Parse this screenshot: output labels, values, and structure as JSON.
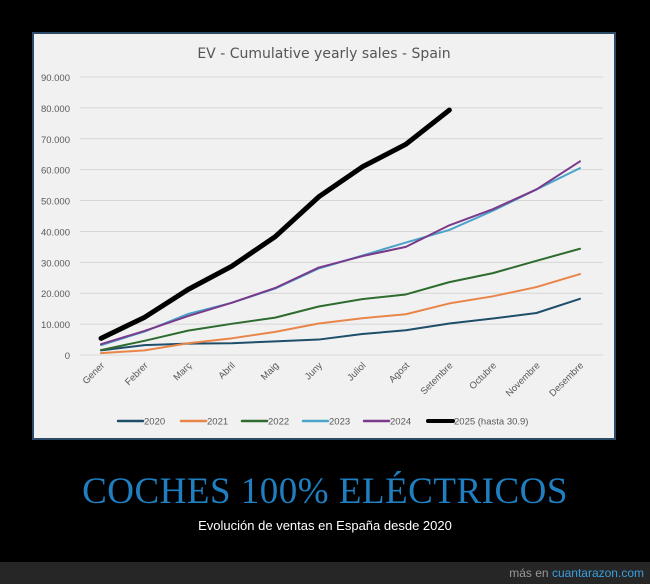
{
  "chart_data": {
    "type": "line",
    "title": "EV - Cumulative yearly sales - Spain",
    "xlabel": "",
    "ylabel": "",
    "ylim": [
      0,
      90000
    ],
    "yticks": [
      "0",
      "10.000",
      "20.000",
      "30.000",
      "40.000",
      "50.000",
      "60.000",
      "70.000",
      "80.000",
      "90.000"
    ],
    "grid": true,
    "legend_position": "bottom",
    "categories": [
      "Gener",
      "Febrer",
      "Març",
      "Abril",
      "Maig",
      "Juny",
      "Juliol",
      "Agost",
      "Setembre",
      "Octubre",
      "Novembre",
      "Desembre"
    ],
    "series": [
      {
        "name": "2020",
        "color": "#1f4e6b",
        "width": 2,
        "values": [
          1500,
          3200,
          3700,
          3800,
          4400,
          5000,
          6800,
          8000,
          10200,
          11800,
          13600,
          18200
        ]
      },
      {
        "name": "2021",
        "color": "#e8864a",
        "width": 2,
        "values": [
          600,
          1500,
          3800,
          5400,
          7500,
          10200,
          11900,
          13200,
          16700,
          19000,
          22000,
          26200
        ]
      },
      {
        "name": "2022",
        "color": "#2e6b2e",
        "width": 2,
        "values": [
          1600,
          4600,
          7900,
          10100,
          12100,
          15700,
          18100,
          19600,
          23600,
          26500,
          30500,
          34400
        ]
      },
      {
        "name": "2023",
        "color": "#4aa3c8",
        "width": 2,
        "values": [
          3200,
          7600,
          13300,
          16900,
          21500,
          28000,
          32200,
          36400,
          40500,
          46700,
          53600,
          60500
        ]
      },
      {
        "name": "2024",
        "color": "#7a3a8c",
        "width": 2,
        "values": [
          3500,
          7800,
          12600,
          16900,
          21700,
          28300,
          32000,
          35000,
          42000,
          47200,
          53600,
          62700
        ]
      },
      {
        "name": "2025 (hasta 30.9)",
        "color": "#000000",
        "width": 5,
        "values": [
          5400,
          12200,
          21200,
          28700,
          38300,
          51200,
          60900,
          68200,
          79300
        ]
      }
    ]
  },
  "caption": {
    "headline": "COCHES 100% ELÉCTRICOS",
    "subtitle": "Evolución de ventas en España desde 2020"
  },
  "footer": {
    "prefix": "más en ",
    "link": "cuantarazon.com"
  }
}
